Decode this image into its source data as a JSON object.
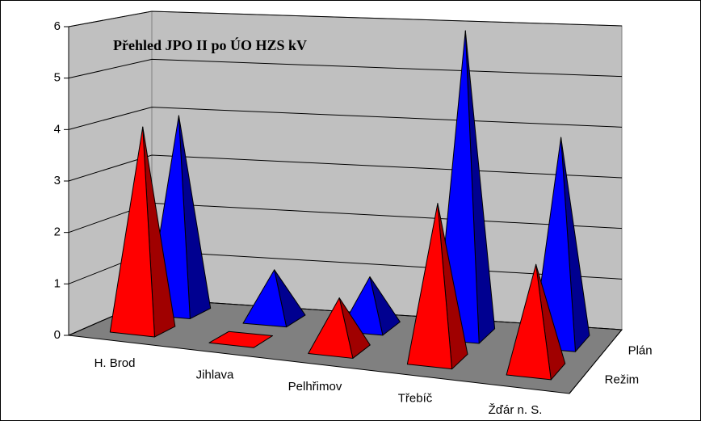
{
  "chart_data": {
    "type": "pyramid3d",
    "title": "Přehled JPO II po ÚO HZS kV",
    "categories": [
      "H. Brod",
      "Jihlava",
      "Pelhřimov",
      "Třebíč",
      "Žďár n. S."
    ],
    "series": [
      {
        "name": "Režim",
        "color": "#ff0000",
        "side_color": "#a00000",
        "values": [
          4,
          0,
          1,
          3,
          2
        ]
      },
      {
        "name": "Plán",
        "color": "#0000ff",
        "side_color": "#000090",
        "values": [
          4,
          1,
          1,
          6,
          4
        ]
      }
    ],
    "ylim": [
      0,
      6
    ],
    "yticks": [
      0,
      1,
      2,
      3,
      4,
      5,
      6
    ],
    "grid": true
  }
}
